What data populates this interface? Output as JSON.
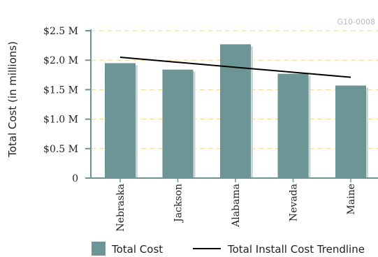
{
  "chart_data": {
    "type": "bar",
    "chart_id": "G10-0008",
    "categories": [
      "Nebraska",
      "Jackson",
      "Alabama",
      "Nevada",
      "Maine"
    ],
    "series": [
      {
        "name": "Total Cost",
        "values": [
          1.95,
          1.84,
          2.27,
          1.77,
          1.57
        ],
        "color": "#6e9595"
      }
    ],
    "trendline": {
      "name": "Total Install Cost Trendline",
      "start": 2.05,
      "end": 1.71,
      "color": "#000000"
    },
    "ylabel": "Total Cost (in millions)",
    "ylim": [
      0,
      2.5
    ],
    "yticks": [
      {
        "value": 0,
        "label": "0"
      },
      {
        "value": 0.5,
        "label": "$0.5 M"
      },
      {
        "value": 1.0,
        "label": "$1.0 M"
      },
      {
        "value": 1.5,
        "label": "$1.5 M"
      },
      {
        "value": 2.0,
        "label": "$2.0 M"
      },
      {
        "value": 2.5,
        "label": "$2.5 M"
      }
    ],
    "grid": true,
    "grid_color": "#f0d58c",
    "legend_position": "bottom"
  }
}
